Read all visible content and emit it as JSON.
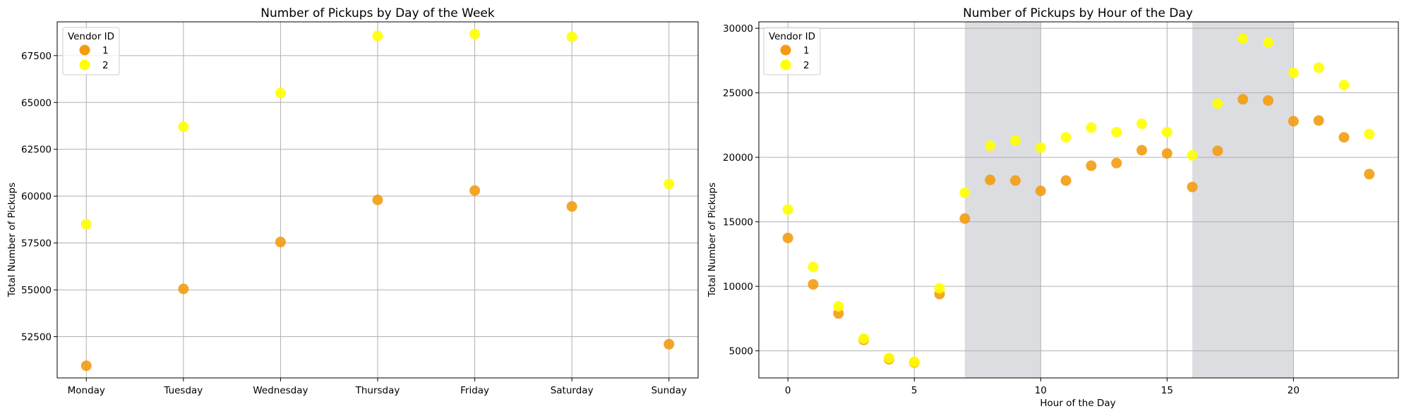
{
  "colors": {
    "vendor1": "#f39c12",
    "vendor2": "#ffff00",
    "grid": "#b0b0b0",
    "shade": "#8a8d9c"
  },
  "chart_data": [
    {
      "type": "scatter",
      "title": "Number of Pickups by Day of the Week",
      "xlabel": "",
      "ylabel": "Total Number of Pickups",
      "categories": [
        "Monday",
        "Tuesday",
        "Wednesday",
        "Thursday",
        "Friday",
        "Saturday",
        "Sunday"
      ],
      "ylim": [
        50300,
        69300
      ],
      "yticks": [
        52500,
        55000,
        57500,
        60000,
        62500,
        65000,
        67500
      ],
      "grid": true,
      "legend": {
        "title": "Vendor ID",
        "position": "top-left"
      },
      "series": [
        {
          "name": "1",
          "color": "#f39c12",
          "values": [
            50950,
            55050,
            57550,
            59800,
            60300,
            59450,
            52100
          ]
        },
        {
          "name": "2",
          "color": "#ffff00",
          "values": [
            58500,
            63700,
            65500,
            68550,
            68650,
            68500,
            60650
          ]
        }
      ]
    },
    {
      "type": "scatter",
      "title": "Number of Pickups by Hour of the Day",
      "xlabel": "Hour of the Day",
      "ylabel": "Total Number of Pickups",
      "xlim": [
        -1.15,
        24.15
      ],
      "ylim": [
        2900,
        30500
      ],
      "xticks": [
        0,
        5,
        10,
        15,
        20
      ],
      "yticks": [
        5000,
        10000,
        15000,
        20000,
        25000,
        30000
      ],
      "grid": true,
      "shaded_ranges": [
        [
          7,
          10
        ],
        [
          16,
          20
        ]
      ],
      "legend": {
        "title": "Vendor ID",
        "position": "top-left"
      },
      "series": [
        {
          "name": "1",
          "color": "#f39c12",
          "x": [
            0,
            1,
            2,
            3,
            4,
            5,
            6,
            7,
            8,
            9,
            10,
            11,
            12,
            13,
            14,
            15,
            16,
            17,
            18,
            19,
            20,
            21,
            22,
            23
          ],
          "values": [
            13750,
            10150,
            7900,
            5850,
            4350,
            4100,
            9400,
            15250,
            18250,
            18200,
            17400,
            18200,
            19350,
            19550,
            20550,
            20300,
            17700,
            20500,
            24500,
            24400,
            22800,
            22850,
            21550,
            18700
          ]
        },
        {
          "name": "2",
          "color": "#ffff00",
          "x": [
            0,
            1,
            2,
            3,
            4,
            5,
            6,
            7,
            8,
            9,
            10,
            11,
            12,
            13,
            14,
            15,
            16,
            17,
            18,
            19,
            20,
            21,
            22,
            23
          ],
          "values": [
            15950,
            11500,
            8450,
            5950,
            4450,
            4150,
            9850,
            17250,
            20900,
            21300,
            20750,
            21550,
            22300,
            21950,
            22600,
            21950,
            20150,
            24150,
            29200,
            28900,
            26550,
            26950,
            25600,
            21800
          ]
        }
      ]
    }
  ]
}
